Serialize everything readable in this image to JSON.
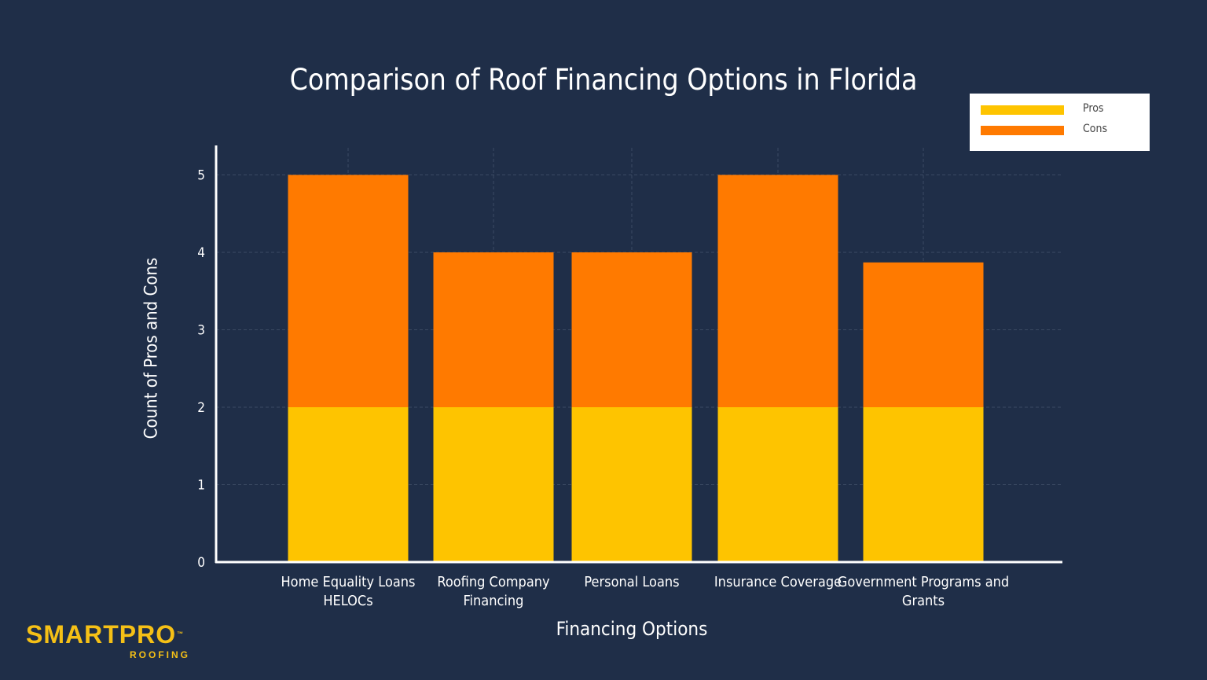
{
  "chart_data": {
    "type": "bar",
    "stacked": true,
    "title": "Comparison of Roof Financing Options in Florida",
    "xlabel": "Financing Options",
    "ylabel": "Count of Pros and Cons",
    "categories": [
      [
        "Home Equality Loans",
        "HELOCs"
      ],
      [
        "Roofing Company",
        "Financing"
      ],
      [
        "Personal Loans"
      ],
      [
        "Insurance Coverage"
      ],
      [
        "Government Programs and",
        "Grants"
      ]
    ],
    "series": [
      {
        "name": "Pros",
        "color": "#fec400",
        "values": [
          2,
          2,
          2,
          2,
          2
        ]
      },
      {
        "name": "Cons",
        "color": "#ff7a00",
        "values": [
          3,
          2,
          2,
          3,
          1.87
        ]
      }
    ],
    "ylim": [
      0,
      5.3
    ],
    "yticks": [
      0,
      1,
      2,
      3,
      4,
      5
    ],
    "grid": true,
    "legend_position": "top-right"
  },
  "logo": {
    "name": "SMARTPRO",
    "tm": "™",
    "sub": "ROOFING"
  },
  "colors": {
    "background": "#1f2e48",
    "axis": "#ffffff",
    "grid": "#3b4a63"
  }
}
